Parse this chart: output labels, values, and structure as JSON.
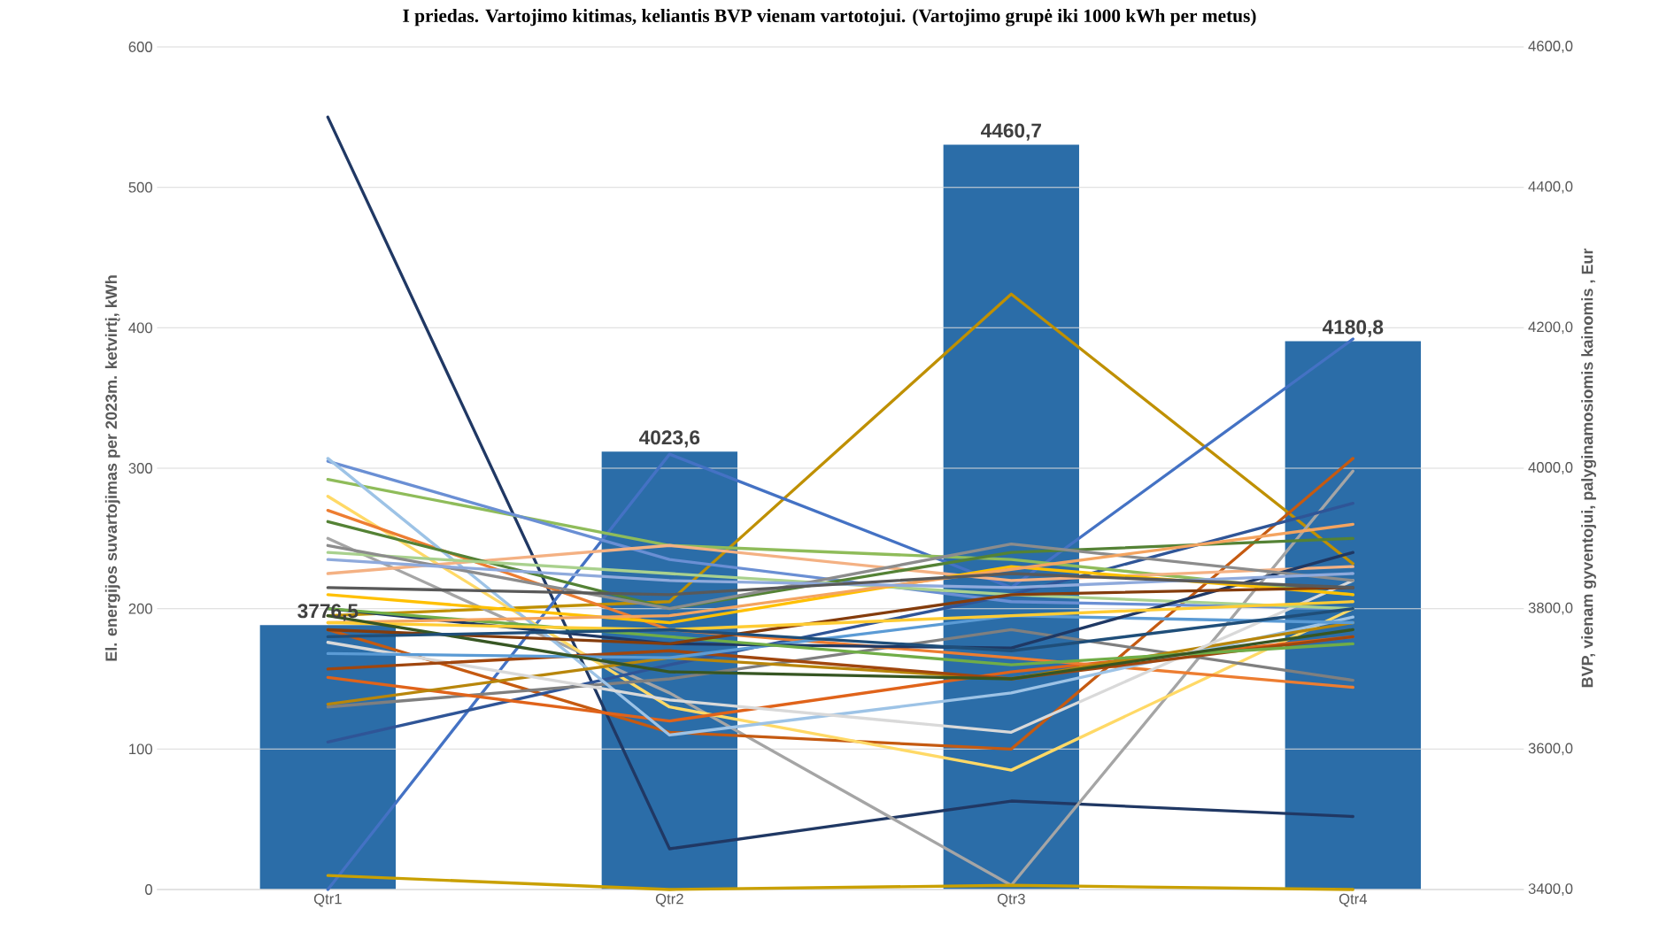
{
  "chart_data": {
    "type": "line",
    "title": "I priedas. Vartojimo kitimas, keliantis BVP vienam vartotojui. (Vartojimo grupė iki 1000 kWh per metus)",
    "ylabel": "El. energijos suvartojimas per 2023m. ketvirtį, kWh",
    "y2label": "BVP, vienam gyventojui, palyginamosiomis kainomis , Eur",
    "categories": [
      "Qtr1",
      "Qtr2",
      "Qtr3",
      "Qtr4"
    ],
    "ylim": [
      0,
      600
    ],
    "yticks": [
      0,
      100,
      200,
      300,
      400,
      500,
      600
    ],
    "y2lim": [
      3400,
      4600
    ],
    "y2ticks": [
      {
        "value": 3400,
        "label": "3400,0"
      },
      {
        "value": 3600,
        "label": "3600,0"
      },
      {
        "value": 3800,
        "label": "3800,0"
      },
      {
        "value": 4000,
        "label": "4000,0"
      },
      {
        "value": 4200,
        "label": "4200,0"
      },
      {
        "value": 4400,
        "label": "4400,0"
      },
      {
        "value": 4600,
        "label": "4600,0"
      }
    ],
    "grid": "y",
    "series": [
      {
        "type": "bar",
        "axis": "y2",
        "color": "#2b6da8",
        "values": [
          3776.5,
          4023.6,
          4460.7,
          4180.8
        ],
        "value_labels": [
          "3776,5",
          "4023,6",
          "4460,7",
          "4180,8"
        ]
      },
      {
        "color": "#203864",
        "values": [
          550,
          29,
          63,
          52
        ]
      },
      {
        "color": "#bf9000",
        "values": [
          195,
          205,
          424,
          232
        ]
      },
      {
        "color": "#4472c4",
        "values": [
          0,
          310,
          215,
          392
        ]
      },
      {
        "color": "#a5a5a5",
        "values": [
          250,
          140,
          3,
          298
        ]
      },
      {
        "color": "#c55a11",
        "values": [
          185,
          112,
          100,
          307
        ]
      },
      {
        "color": "#ffd966",
        "values": [
          280,
          130,
          85,
          200
        ]
      },
      {
        "color": "#c9a000",
        "values": [
          10,
          0,
          3,
          0
        ]
      },
      {
        "color": "#2f5597",
        "values": [
          105,
          160,
          210,
          275
        ]
      },
      {
        "color": "#7f7f7f",
        "values": [
          130,
          150,
          185,
          149
        ]
      },
      {
        "color": "#e0631a",
        "values": [
          151,
          120,
          155,
          180
        ]
      },
      {
        "color": "#ed7d31",
        "values": [
          270,
          185,
          165,
          144
        ]
      },
      {
        "color": "#8fbc5a",
        "values": [
          292,
          245,
          235,
          210
        ]
      },
      {
        "color": "#6a8fd4",
        "values": [
          305,
          235,
          205,
          200
        ]
      },
      {
        "color": "#9dc3e6",
        "values": [
          307,
          110,
          140,
          194
        ]
      },
      {
        "color": "#f4b183",
        "values": [
          225,
          245,
          220,
          230
        ]
      },
      {
        "color": "#548235",
        "values": [
          262,
          200,
          240,
          250
        ]
      },
      {
        "color": "#b8860b",
        "values": [
          132,
          165,
          150,
          190
        ]
      },
      {
        "color": "#d9d9d9",
        "values": [
          176,
          135,
          112,
          220
        ]
      },
      {
        "color": "#a0460e",
        "values": [
          157,
          170,
          150,
          180
        ]
      },
      {
        "color": "#5b9bd5",
        "values": [
          168,
          165,
          195,
          190
        ]
      },
      {
        "color": "#a9d18e",
        "values": [
          240,
          225,
          210,
          200
        ]
      },
      {
        "color": "#1f3864",
        "values": [
          200,
          175,
          172,
          240
        ]
      },
      {
        "color": "#8c8c8c",
        "values": [
          245,
          200,
          246,
          220
        ]
      },
      {
        "color": "#ffc000",
        "values": [
          210,
          190,
          230,
          210
        ]
      },
      {
        "color": "#70ad47",
        "values": [
          200,
          180,
          160,
          175
        ]
      },
      {
        "color": "#f4a460",
        "values": [
          190,
          195,
          228,
          260
        ]
      },
      {
        "color": "#843c0c",
        "values": [
          185,
          175,
          210,
          215
        ]
      },
      {
        "color": "#ffcc33",
        "values": [
          190,
          185,
          195,
          205
        ]
      },
      {
        "color": "#8faadc",
        "values": [
          235,
          220,
          215,
          225
        ]
      },
      {
        "color": "#375623",
        "values": [
          195,
          155,
          150,
          185
        ]
      },
      {
        "color": "#595959",
        "values": [
          215,
          210,
          225,
          215
        ]
      },
      {
        "color": "#1f4e79",
        "values": [
          180,
          185,
          170,
          200
        ]
      }
    ]
  }
}
